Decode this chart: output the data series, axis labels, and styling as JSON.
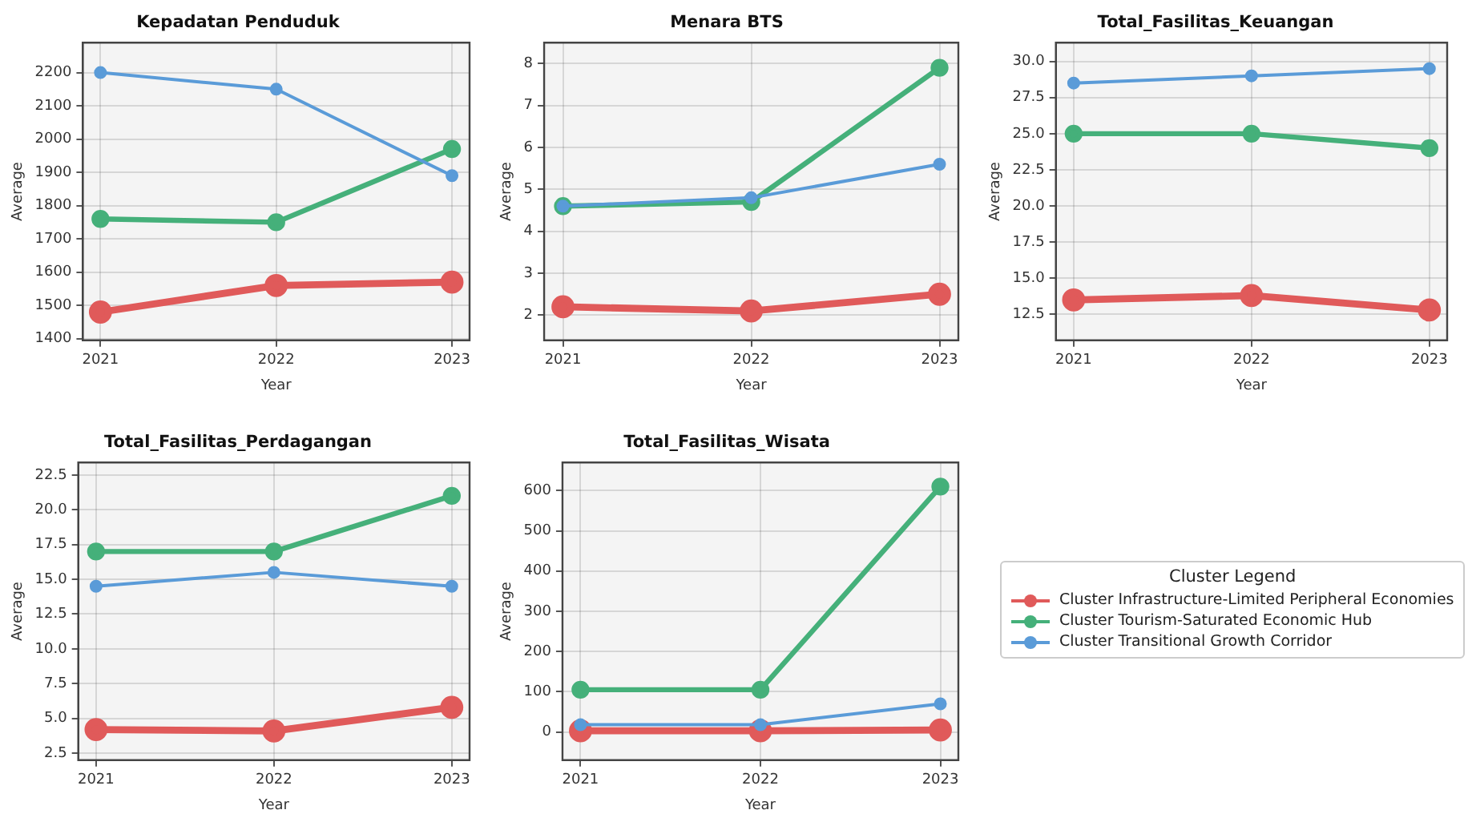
{
  "chart_data": [
    {
      "type": "line",
      "title": "Kepadatan Penduduk",
      "xlabel": "Year",
      "ylabel": "Average",
      "x": [
        2021,
        2022,
        2023
      ],
      "xlim": [
        2020.9,
        2023.1
      ],
      "xticks": [
        2021,
        2022,
        2023
      ],
      "ylim": [
        1395,
        2290
      ],
      "yticks": [
        1400,
        1500,
        1600,
        1700,
        1800,
        1900,
        2000,
        2100,
        2200
      ],
      "grid": true,
      "marker": "circle",
      "legend": false,
      "series": [
        {
          "color": "#e05a5a",
          "values": [
            1480,
            1560,
            1570
          ]
        },
        {
          "color": "#45b07a",
          "values": [
            1760,
            1750,
            1970
          ]
        },
        {
          "color": "#5a9bd8",
          "values": [
            2200,
            2150,
            1890
          ]
        }
      ]
    },
    {
      "type": "line",
      "title": "Menara BTS",
      "xlabel": "Year",
      "ylabel": "Average",
      "x": [
        2021,
        2022,
        2023
      ],
      "xlim": [
        2020.9,
        2023.1
      ],
      "xticks": [
        2021,
        2022,
        2023
      ],
      "ylim": [
        1.4,
        8.5
      ],
      "yticks": [
        2,
        3,
        4,
        5,
        6,
        7,
        8
      ],
      "grid": true,
      "marker": "circle",
      "legend": false,
      "series": [
        {
          "color": "#e05a5a",
          "values": [
            2.2,
            2.1,
            2.5
          ]
        },
        {
          "color": "#45b07a",
          "values": [
            4.6,
            4.7,
            7.9
          ]
        },
        {
          "color": "#5a9bd8",
          "values": [
            4.6,
            4.8,
            5.6
          ]
        }
      ]
    },
    {
      "type": "line",
      "title": "Total_Fasilitas_Keuangan",
      "xlabel": "Year",
      "ylabel": "Average",
      "x": [
        2021,
        2022,
        2023
      ],
      "xlim": [
        2020.9,
        2023.1
      ],
      "xticks": [
        2021,
        2022,
        2023
      ],
      "ylim": [
        10.7,
        31.3
      ],
      "yticks": [
        12.5,
        {
          "value": 15,
          "label": "15.0"
        },
        17.5,
        {
          "value": 20,
          "label": "20.0"
        },
        22.5,
        {
          "value": 25,
          "label": "25.0"
        },
        27.5,
        {
          "value": 30,
          "label": "30.0"
        }
      ],
      "grid": true,
      "marker": "circle",
      "legend": false,
      "series": [
        {
          "color": "#e05a5a",
          "values": [
            13.5,
            13.8,
            12.8
          ]
        },
        {
          "color": "#45b07a",
          "values": [
            25,
            25,
            24
          ]
        },
        {
          "color": "#5a9bd8",
          "values": [
            28.5,
            29,
            29.5
          ]
        }
      ]
    },
    {
      "type": "line",
      "title": "Total_Fasilitas_Perdagangan",
      "xlabel": "Year",
      "ylabel": "Average",
      "x": [
        2021,
        2022,
        2023
      ],
      "xlim": [
        2020.9,
        2023.1
      ],
      "xticks": [
        2021,
        2022,
        2023
      ],
      "ylim": [
        2.0,
        23.4
      ],
      "yticks": [
        2.5,
        {
          "value": 5,
          "label": "5.0"
        },
        7.5,
        {
          "value": 10,
          "label": "10.0"
        },
        12.5,
        {
          "value": 15,
          "label": "15.0"
        },
        17.5,
        {
          "value": 20,
          "label": "20.0"
        },
        22.5
      ],
      "grid": true,
      "marker": "circle",
      "legend": false,
      "series": [
        {
          "color": "#e05a5a",
          "values": [
            4.2,
            4.1,
            5.8
          ]
        },
        {
          "color": "#45b07a",
          "values": [
            17,
            17,
            21
          ]
        },
        {
          "color": "#5a9bd8",
          "values": [
            14.5,
            15.5,
            14.5
          ]
        }
      ]
    },
    {
      "type": "line",
      "title": "Total_Fasilitas_Wisata",
      "xlabel": "Year",
      "ylabel": "Average",
      "x": [
        2021,
        2022,
        2023
      ],
      "xlim": [
        2020.9,
        2023.1
      ],
      "xticks": [
        2021,
        2022,
        2023
      ],
      "ylim": [
        -70,
        670
      ],
      "yticks": [
        0,
        100,
        200,
        300,
        400,
        500,
        600
      ],
      "grid": true,
      "marker": "circle",
      "legend": "right",
      "legend_title": "Cluster Legend",
      "series": [
        {
          "name": "Cluster Infrastructure-Limited Peripheral Economies",
          "color": "#e05a5a",
          "values": [
            3,
            3,
            5
          ]
        },
        {
          "name": "Cluster Tourism-Saturated Economic Hub",
          "color": "#45b07a",
          "values": [
            105,
            105,
            610
          ]
        },
        {
          "name": "Cluster Transitional Growth Corridor",
          "color": "#5a9bd8",
          "values": [
            18,
            18,
            70
          ]
        }
      ]
    }
  ]
}
